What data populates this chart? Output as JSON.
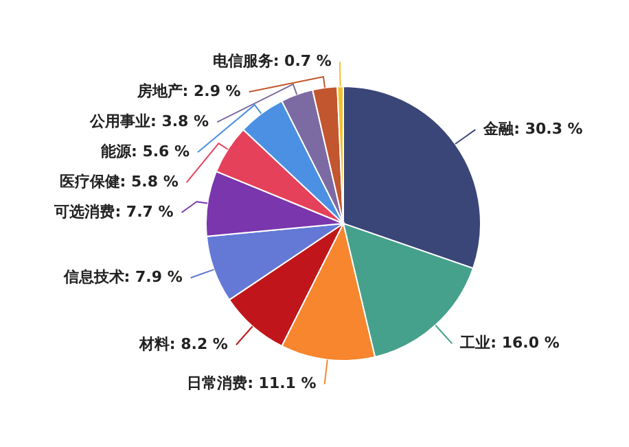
{
  "chart_data": {
    "type": "pie",
    "categories": [
      "金融",
      "工业",
      "日常消费",
      "材料",
      "信息技术",
      "可选消费",
      "医疗保健",
      "能源",
      "公用事业",
      "房地产",
      "电信服务"
    ],
    "values": [
      30.3,
      16.0,
      11.1,
      8.2,
      7.9,
      7.7,
      5.8,
      5.6,
      3.8,
      2.9,
      0.7
    ],
    "value_labels": [
      "30.3 %",
      "16.0 %",
      "11.1 %",
      "8.2 %",
      "7.9 %",
      "7.7 %",
      "5.8 %",
      "5.6 %",
      "3.8 %",
      "2.9 %",
      "0.7 %"
    ],
    "colors": [
      "#3a4678",
      "#45a18b",
      "#f7862e",
      "#c0161b",
      "#6479d6",
      "#7a36ad",
      "#e6415b",
      "#4b90e2",
      "#7c6aa2",
      "#c2562e",
      "#f2c12e"
    ]
  }
}
